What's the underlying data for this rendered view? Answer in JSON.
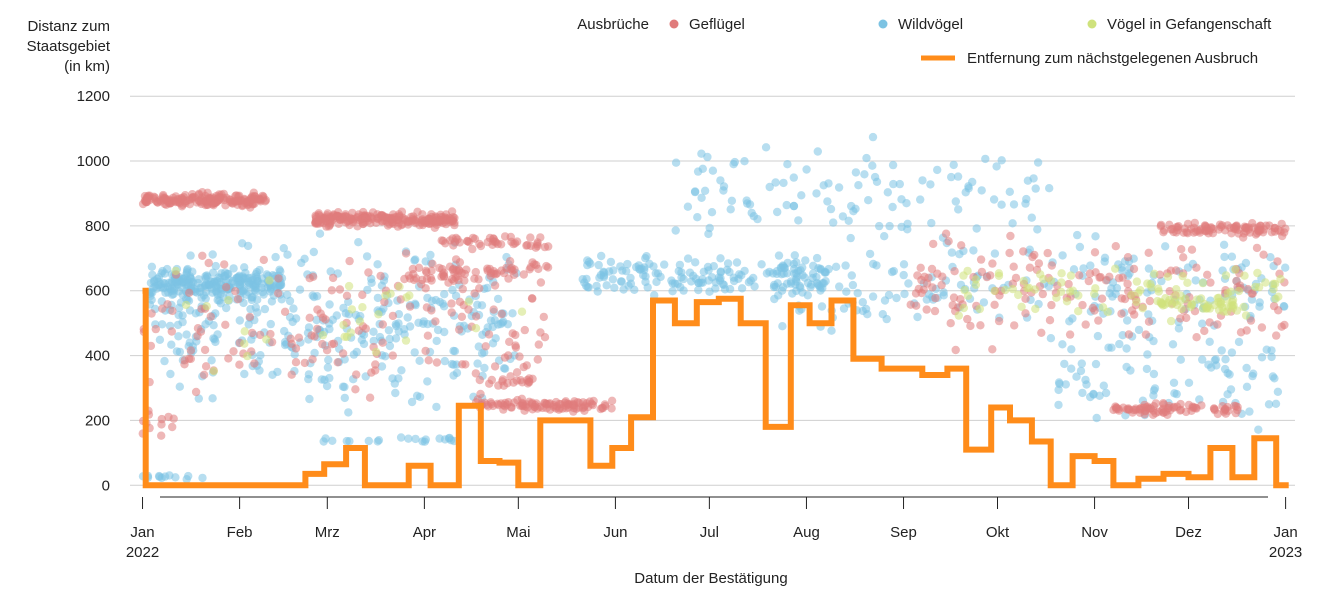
{
  "chart_data": {
    "type": "scatter",
    "title": "",
    "ylabel_lines": [
      "Distanz zum",
      "Staatsgebiet",
      "(in km)"
    ],
    "xlabel": "Datum der Bestätigung",
    "ylim": [
      -30,
      1250
    ],
    "y_ticks": [
      0,
      200,
      400,
      600,
      800,
      1000,
      1200
    ],
    "x_range_days": [
      -4,
      368
    ],
    "x_ticks": [
      {
        "day": 0,
        "label": "Jan",
        "sub": "2022"
      },
      {
        "day": 31,
        "label": "Feb",
        "sub": ""
      },
      {
        "day": 59,
        "label": "Mrz",
        "sub": ""
      },
      {
        "day": 90,
        "label": "Apr",
        "sub": ""
      },
      {
        "day": 120,
        "label": "Mai",
        "sub": ""
      },
      {
        "day": 151,
        "label": "Jun",
        "sub": ""
      },
      {
        "day": 181,
        "label": "Jul",
        "sub": ""
      },
      {
        "day": 212,
        "label": "Aug",
        "sub": ""
      },
      {
        "day": 243,
        "label": "Sep",
        "sub": ""
      },
      {
        "day": 273,
        "label": "Okt",
        "sub": ""
      },
      {
        "day": 304,
        "label": "Nov",
        "sub": ""
      },
      {
        "day": 334,
        "label": "Dez",
        "sub": ""
      },
      {
        "day": 365,
        "label": "Jan",
        "sub": "2023"
      }
    ],
    "legend": {
      "title": "Ausbrüche",
      "entries": [
        {
          "name": "Geflügel",
          "color": "#e07b7b"
        },
        {
          "name": "Wildvögel",
          "color": "#7cc3e3"
        },
        {
          "name": "Vögel in Gefangenschaft",
          "color": "#cfe27c"
        }
      ],
      "line_entry": {
        "name": "Entfernung zum nächstgelegenen Ausbruch",
        "color": "#ff8c1a"
      }
    },
    "scatter_clusters": [
      {
        "series": "Wildvögel",
        "day_range": [
          2,
          45
        ],
        "y_center": 620,
        "y_spread": 70,
        "count": 230
      },
      {
        "series": "Wildvögel",
        "day_range": [
          2,
          120
        ],
        "y_center": 500,
        "y_spread": 320,
        "count": 330
      },
      {
        "series": "Wildvögel",
        "day_range": [
          55,
          100
        ],
        "y_center": 140,
        "y_spread": 12,
        "count": 20
      },
      {
        "series": "Wildvögel",
        "day_range": [
          0,
          20
        ],
        "y_center": 25,
        "y_spread": 10,
        "count": 12
      },
      {
        "series": "Wildvögel",
        "day_range": [
          140,
          220
        ],
        "y_center": 640,
        "y_spread": 90,
        "count": 170
      },
      {
        "series": "Wildvögel",
        "day_range": [
          170,
          290
        ],
        "y_center": 900,
        "y_spread": 200,
        "count": 110
      },
      {
        "series": "Wildvögel",
        "day_range": [
          200,
          365
        ],
        "y_center": 620,
        "y_spread": 200,
        "count": 200
      },
      {
        "series": "Wildvögel",
        "day_range": [
          290,
          365
        ],
        "y_center": 350,
        "y_spread": 250,
        "count": 90
      },
      {
        "series": "Geflügel",
        "day_range": [
          0,
          40
        ],
        "y_center": 880,
        "y_spread": 30,
        "count": 170
      },
      {
        "series": "Geflügel",
        "day_range": [
          55,
          100
        ],
        "y_center": 820,
        "y_spread": 30,
        "count": 220
      },
      {
        "series": "Geflügel",
        "day_range": [
          95,
          130
        ],
        "y_center": 750,
        "y_spread": 30,
        "count": 45
      },
      {
        "series": "Geflügel",
        "day_range": [
          85,
          130
        ],
        "y_center": 660,
        "y_spread": 50,
        "count": 70
      },
      {
        "series": "Geflügel",
        "day_range": [
          0,
          130
        ],
        "y_center": 500,
        "y_spread": 300,
        "count": 160
      },
      {
        "series": "Geflügel",
        "day_range": [
          106,
          150
        ],
        "y_center": 245,
        "y_spread": 25,
        "count": 100
      },
      {
        "series": "Geflügel",
        "day_range": [
          106,
          125
        ],
        "y_center": 320,
        "y_spread": 20,
        "count": 18
      },
      {
        "series": "Geflügel",
        "day_range": [
          245,
          365
        ],
        "y_center": 600,
        "y_spread": 230,
        "count": 170
      },
      {
        "series": "Geflügel",
        "day_range": [
          310,
          350
        ],
        "y_center": 235,
        "y_spread": 25,
        "count": 80
      },
      {
        "series": "Geflügel",
        "day_range": [
          325,
          365
        ],
        "y_center": 790,
        "y_spread": 30,
        "count": 90
      },
      {
        "series": "Geflügel",
        "day_range": [
          0,
          10
        ],
        "y_center": 200,
        "y_spread": 100,
        "count": 12
      },
      {
        "series": "Vögel in Gefangenschaft",
        "day_range": [
          260,
          365
        ],
        "y_center": 600,
        "y_spread": 120,
        "count": 80
      },
      {
        "series": "Vögel in Gefangenschaft",
        "day_range": [
          325,
          350
        ],
        "y_center": 560,
        "y_spread": 40,
        "count": 45
      },
      {
        "series": "Vögel in Gefangenschaft",
        "day_range": [
          0,
          140
        ],
        "y_center": 500,
        "y_spread": 250,
        "count": 30
      }
    ],
    "line_series": {
      "name": "Entfernung zum nächstgelegenen Ausbruch",
      "steps": [
        [
          0,
          600
        ],
        [
          1,
          0
        ],
        [
          49,
          0
        ],
        [
          52,
          35
        ],
        [
          57,
          35
        ],
        [
          58,
          65
        ],
        [
          64,
          65
        ],
        [
          65,
          115
        ],
        [
          70,
          115
        ],
        [
          71,
          0
        ],
        [
          84,
          0
        ],
        [
          85,
          60
        ],
        [
          91,
          60
        ],
        [
          92,
          0
        ],
        [
          100,
          0
        ],
        [
          101,
          245
        ],
        [
          107,
          245
        ],
        [
          108,
          75
        ],
        [
          113,
          75
        ],
        [
          114,
          70
        ],
        [
          119,
          70
        ],
        [
          120,
          0
        ],
        [
          126,
          0
        ],
        [
          127,
          200
        ],
        [
          142,
          200
        ],
        [
          143,
          60
        ],
        [
          149,
          60
        ],
        [
          150,
          115
        ],
        [
          155,
          115
        ],
        [
          156,
          210
        ],
        [
          162,
          210
        ],
        [
          163,
          570
        ],
        [
          169,
          570
        ],
        [
          170,
          500
        ],
        [
          176,
          500
        ],
        [
          177,
          565
        ],
        [
          183,
          565
        ],
        [
          184,
          575
        ],
        [
          190,
          575
        ],
        [
          191,
          500
        ],
        [
          198,
          500
        ],
        [
          199,
          180
        ],
        [
          206,
          180
        ],
        [
          207,
          555
        ],
        [
          212,
          555
        ],
        [
          213,
          500
        ],
        [
          219,
          500
        ],
        [
          220,
          570
        ],
        [
          226,
          570
        ],
        [
          227,
          390
        ],
        [
          235,
          390
        ],
        [
          236,
          360
        ],
        [
          248,
          360
        ],
        [
          249,
          340
        ],
        [
          256,
          340
        ],
        [
          257,
          360
        ],
        [
          262,
          360
        ],
        [
          263,
          110
        ],
        [
          270,
          110
        ],
        [
          271,
          240
        ],
        [
          276,
          240
        ],
        [
          277,
          200
        ],
        [
          283,
          200
        ],
        [
          284,
          135
        ],
        [
          289,
          135
        ],
        [
          290,
          0
        ],
        [
          296,
          0
        ],
        [
          297,
          90
        ],
        [
          303,
          90
        ],
        [
          304,
          75
        ],
        [
          309,
          75
        ],
        [
          310,
          0
        ],
        [
          317,
          0
        ],
        [
          318,
          20
        ],
        [
          325,
          20
        ],
        [
          326,
          35
        ],
        [
          333,
          35
        ],
        [
          334,
          25
        ],
        [
          340,
          25
        ],
        [
          341,
          115
        ],
        [
          347,
          115
        ],
        [
          348,
          25
        ],
        [
          354,
          25
        ],
        [
          355,
          145
        ],
        [
          361,
          145
        ],
        [
          362,
          0
        ],
        [
          366,
          0
        ]
      ]
    }
  }
}
